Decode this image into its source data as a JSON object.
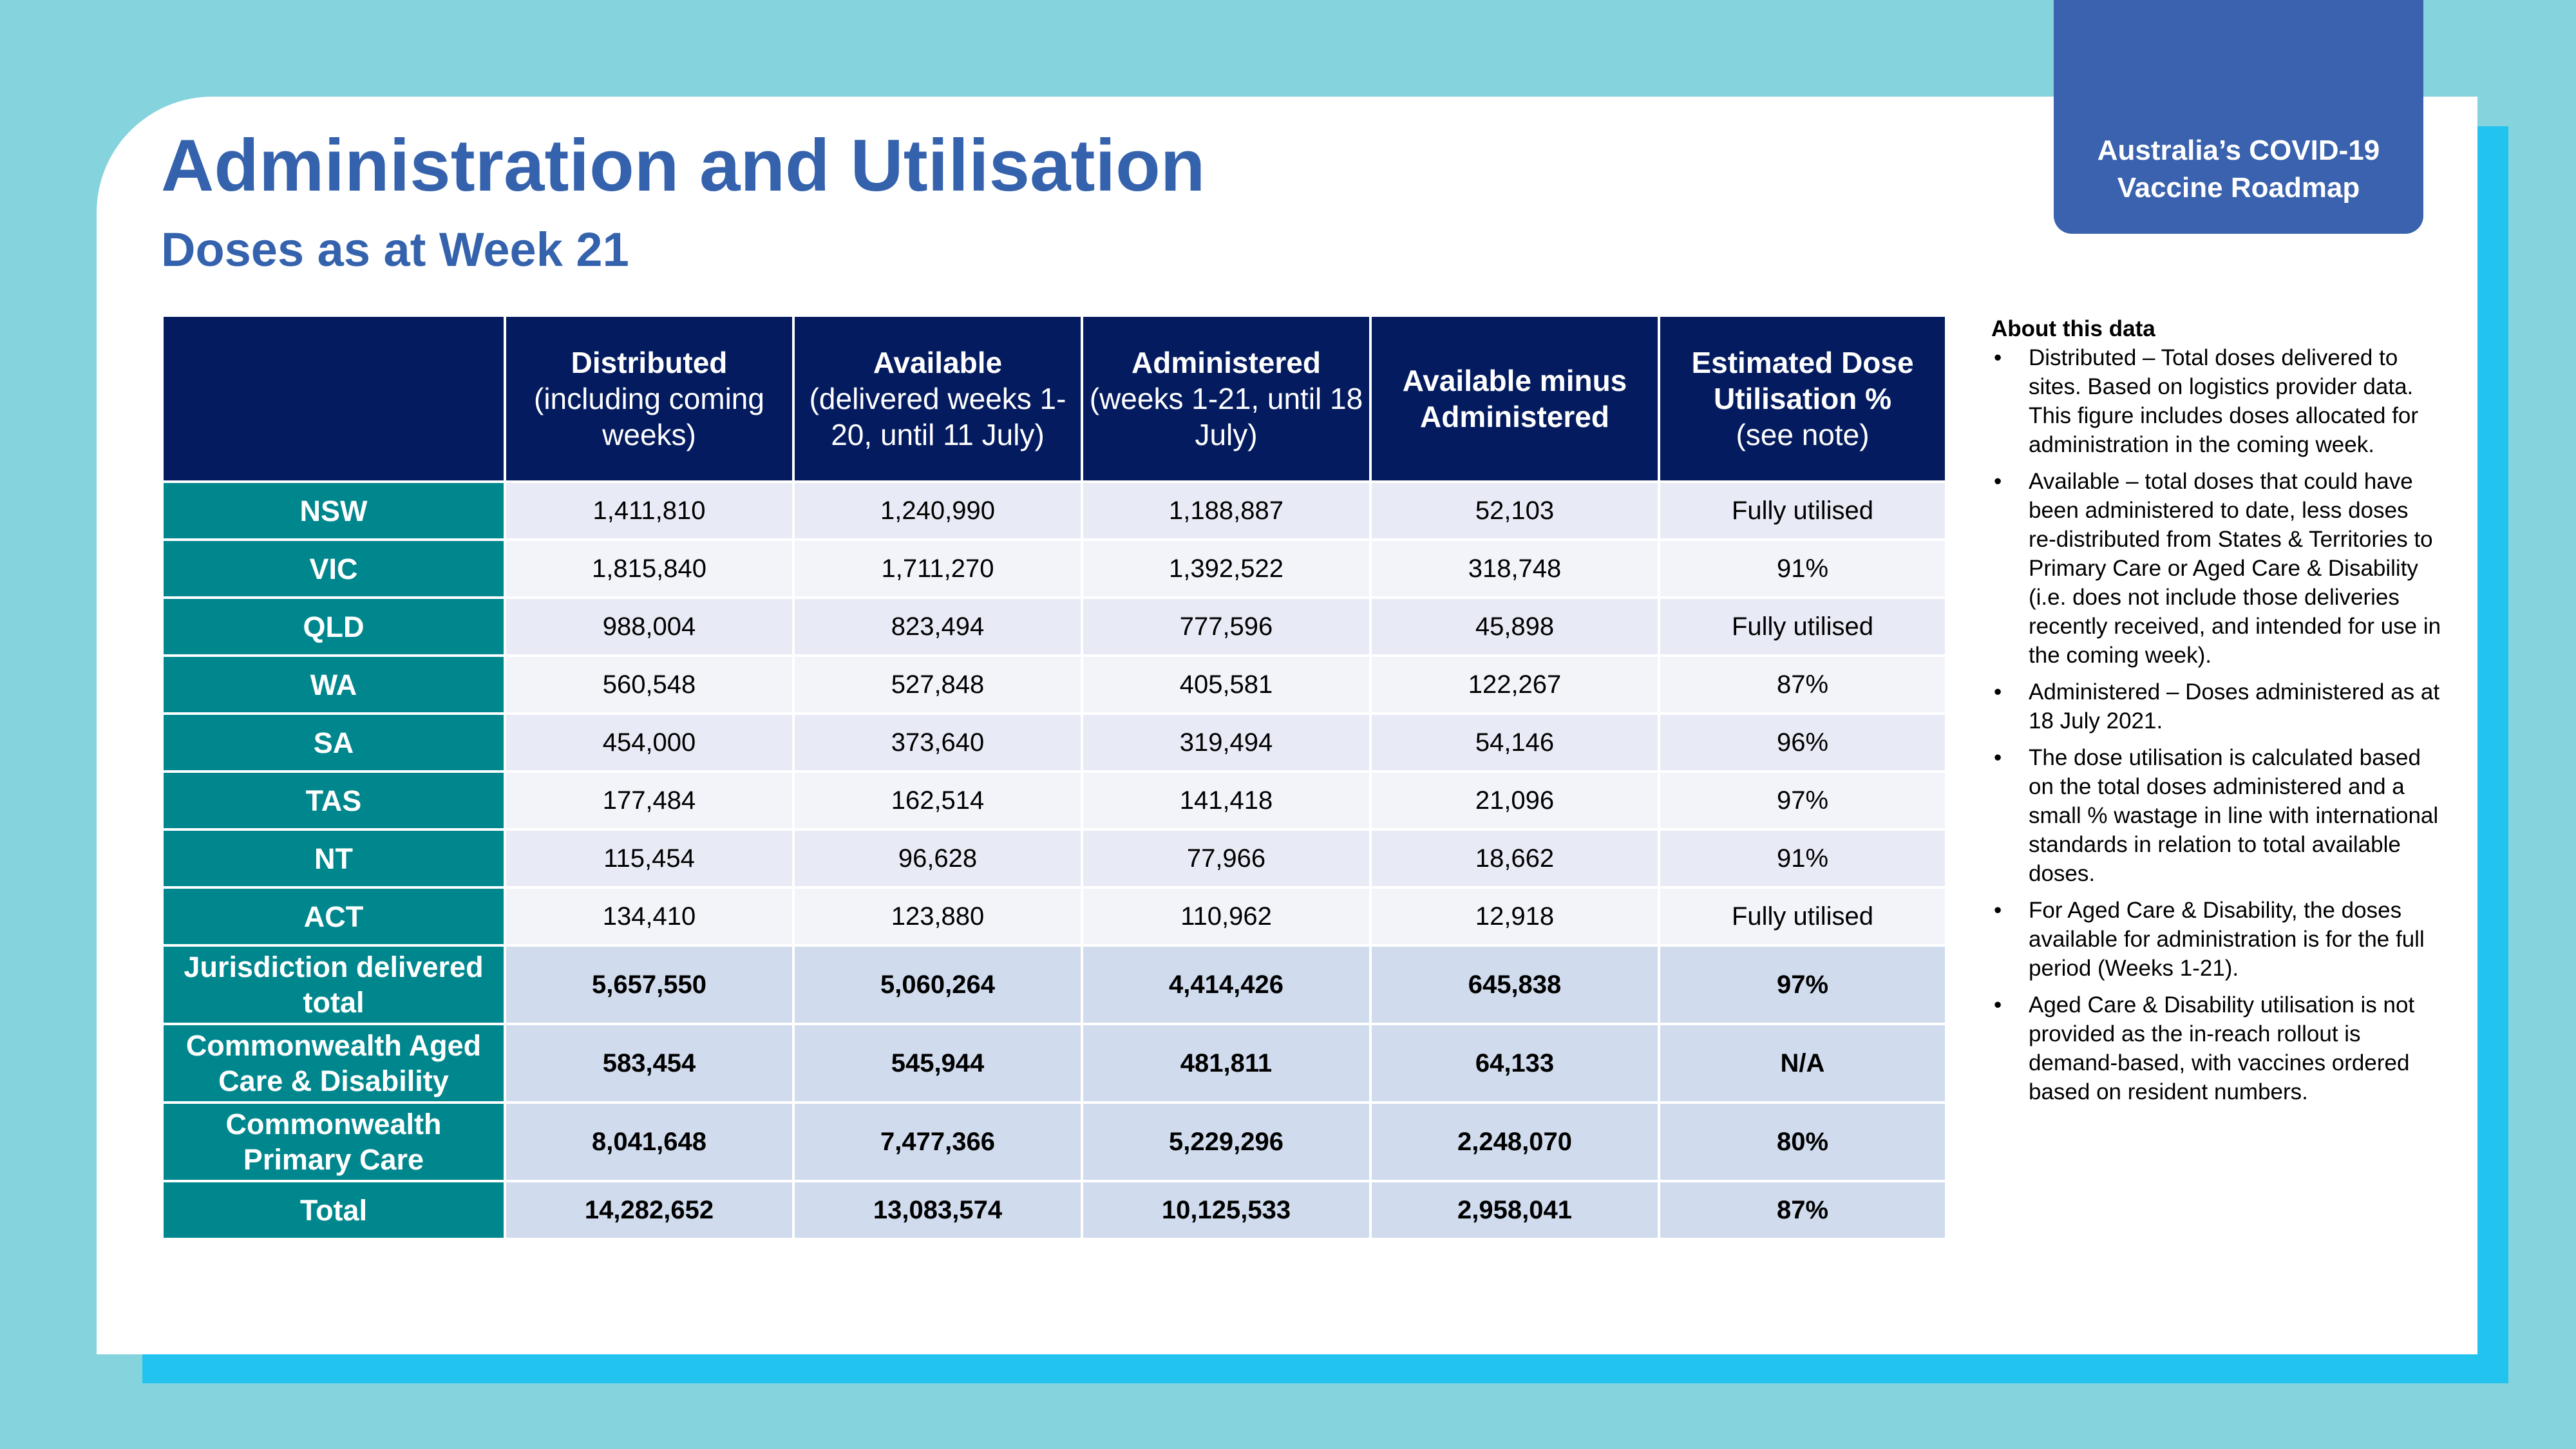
{
  "badge": {
    "line1": "Australia’s COVID-19",
    "line2": "Vaccine Roadmap"
  },
  "title": "Administration and Utilisation",
  "subtitle": "Doses as at Week 21",
  "table": {
    "headers": [
      {
        "bold": "Distributed",
        "rest": "(including coming weeks)"
      },
      {
        "bold": "Available",
        "rest": "(delivered weeks 1-20, until 11 July)"
      },
      {
        "bold": "Administered",
        "rest": "(weeks 1-21, until 18 July)"
      },
      {
        "bold": "Available minus Administered",
        "rest": ""
      },
      {
        "bold": "Estimated Dose Utilisation %",
        "rest": "(see note)"
      }
    ],
    "rows": [
      {
        "label": "NSW",
        "values": [
          "1,411,810",
          "1,240,990",
          "1,188,887",
          "52,103",
          "Fully utilised"
        ]
      },
      {
        "label": "VIC",
        "values": [
          "1,815,840",
          "1,711,270",
          "1,392,522",
          "318,748",
          "91%"
        ]
      },
      {
        "label": "QLD",
        "values": [
          "988,004",
          "823,494",
          "777,596",
          "45,898",
          "Fully utilised"
        ]
      },
      {
        "label": "WA",
        "values": [
          "560,548",
          "527,848",
          "405,581",
          "122,267",
          "87%"
        ]
      },
      {
        "label": "SA",
        "values": [
          "454,000",
          "373,640",
          "319,494",
          "54,146",
          "96%"
        ]
      },
      {
        "label": "TAS",
        "values": [
          "177,484",
          "162,514",
          "141,418",
          "21,096",
          "97%"
        ]
      },
      {
        "label": "NT",
        "values": [
          "115,454",
          "96,628",
          "77,966",
          "18,662",
          "91%"
        ]
      },
      {
        "label": "ACT",
        "values": [
          "134,410",
          "123,880",
          "110,962",
          "12,918",
          "Fully utilised"
        ]
      }
    ],
    "aggregates": [
      {
        "label": "Jurisdiction delivered total",
        "values": [
          "5,657,550",
          "5,060,264",
          "4,414,426",
          "645,838",
          "97%"
        ]
      },
      {
        "label": "Commonwealth Aged Care & Disability",
        "values": [
          "583,454",
          "545,944",
          "481,811",
          "64,133",
          "N/A"
        ]
      },
      {
        "label": "Commonwealth Primary Care",
        "values": [
          "8,041,648",
          "7,477,366",
          "5,229,296",
          "2,248,070",
          "80%"
        ]
      }
    ],
    "total": {
      "label": "Total",
      "values": [
        "14,282,652",
        "13,083,574",
        "10,125,533",
        "2,958,041",
        "87%"
      ]
    }
  },
  "notes": {
    "heading": "About this data",
    "bullet": "•",
    "items": [
      "Distributed – Total doses delivered to sites. Based on logistics provider data. This figure includes doses allocated for administration in the coming week.",
      "Available – total doses that could have been administered to date, less doses re-distributed from States & Territories to Primary Care or Aged Care & Disability (i.e. does not include those deliveries recently received, and intended for use in the coming week).",
      "Administered – Doses administered as at 18 July 2021.",
      "The dose utilisation is calculated based on the total doses administered and a small % wastage in line with international standards in relation to total available doses.",
      "For Aged Care & Disability, the doses available for administration is for the full period (Weeks 1-21).",
      "Aged Care & Disability utilisation is not provided as the in-reach rollout is demand-based, with vaccines ordered based on resident numbers."
    ]
  }
}
